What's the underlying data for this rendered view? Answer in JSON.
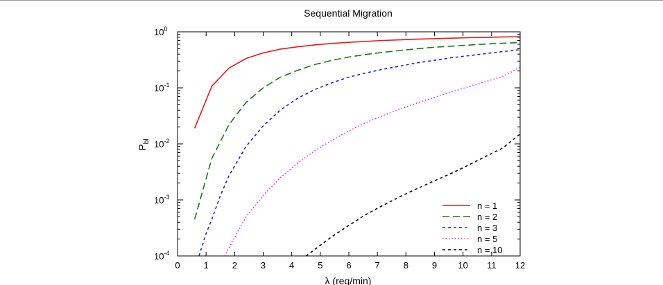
{
  "chart_data": {
    "type": "line",
    "title": "Sequential Migration",
    "xlabel": "λ (req/min)",
    "ylabel_base": "P",
    "ylabel_sub": "bl",
    "xlim": [
      0,
      12
    ],
    "ylim": [
      0.0001,
      1
    ],
    "yscale": "log",
    "grid": false,
    "legend_position": "bottom-right",
    "x_ticks": [
      0,
      1,
      2,
      3,
      4,
      5,
      6,
      7,
      8,
      9,
      10,
      11,
      12
    ],
    "y_ticks": [
      {
        "value": 0.0001,
        "base": "10",
        "exp": "-4"
      },
      {
        "value": 0.001,
        "base": "10",
        "exp": "-3"
      },
      {
        "value": 0.01,
        "base": "10",
        "exp": "-2"
      },
      {
        "value": 0.1,
        "base": "10",
        "exp": "-1"
      },
      {
        "value": 1,
        "base": "10",
        "exp": "0"
      }
    ],
    "series": [
      {
        "name": "n = 1",
        "color": "#e41a1c",
        "dash": "solid",
        "x": [
          0.6,
          1.2,
          1.8,
          2.4,
          3.0,
          3.6,
          4.2,
          4.8,
          5.4,
          6.0,
          6.6,
          7.2,
          7.8,
          8.4,
          9.0,
          9.6,
          10.2,
          10.8,
          11.4,
          12.0
        ],
        "y": [
          0.019,
          0.107,
          0.225,
          0.335,
          0.42,
          0.49,
          0.54,
          0.585,
          0.62,
          0.65,
          0.675,
          0.7,
          0.72,
          0.74,
          0.755,
          0.77,
          0.785,
          0.795,
          0.81,
          0.82
        ]
      },
      {
        "name": "n = 2",
        "color": "#1a7a1a",
        "dash": "long",
        "x": [
          0.6,
          1.2,
          1.8,
          2.4,
          3.0,
          3.6,
          4.2,
          4.8,
          5.4,
          6.0,
          6.6,
          7.2,
          7.8,
          8.4,
          9.0,
          9.6,
          10.2,
          10.8,
          11.4,
          12.0
        ],
        "y": [
          0.00045,
          0.0055,
          0.022,
          0.055,
          0.1,
          0.155,
          0.205,
          0.26,
          0.31,
          0.355,
          0.395,
          0.43,
          0.465,
          0.5,
          0.53,
          0.555,
          0.58,
          0.605,
          0.625,
          0.645
        ]
      },
      {
        "name": "n = 3",
        "color": "#1f1fdd",
        "dash": "short",
        "x": [
          0.75,
          1.0,
          1.2,
          1.5,
          1.8,
          2.4,
          3.0,
          3.6,
          4.2,
          4.8,
          5.4,
          6.0,
          6.6,
          7.2,
          7.8,
          8.4,
          9.0,
          9.6,
          10.2,
          10.8,
          11.4,
          12.0
        ],
        "y": [
          0.0001,
          0.00025,
          0.00045,
          0.0012,
          0.0027,
          0.009,
          0.021,
          0.04,
          0.065,
          0.093,
          0.123,
          0.155,
          0.185,
          0.215,
          0.245,
          0.28,
          0.31,
          0.345,
          0.375,
          0.41,
          0.445,
          0.48
        ]
      },
      {
        "name": "n = 5",
        "color": "#ee22ee",
        "dash": "dotted",
        "x": [
          1.65,
          1.8,
          2.4,
          3.0,
          3.6,
          4.2,
          4.8,
          5.4,
          6.0,
          6.6,
          7.2,
          7.8,
          8.4,
          9.0,
          9.6,
          10.2,
          10.8,
          11.4,
          12.0
        ],
        "y": [
          0.0001,
          0.00014,
          0.0005,
          0.0012,
          0.0025,
          0.0045,
          0.0075,
          0.0115,
          0.017,
          0.024,
          0.032,
          0.042,
          0.054,
          0.068,
          0.085,
          0.105,
          0.13,
          0.16,
          0.235
        ]
      },
      {
        "name": "n = 10",
        "color": "#000000",
        "dash": "short",
        "x": [
          4.5,
          4.8,
          5.4,
          6.0,
          6.6,
          7.2,
          7.8,
          8.4,
          9.0,
          9.6,
          10.2,
          10.8,
          11.4,
          12.0
        ],
        "y": [
          0.0001,
          0.00013,
          0.00022,
          0.00035,
          0.00055,
          0.0008,
          0.00115,
          0.0016,
          0.0022,
          0.003,
          0.0042,
          0.006,
          0.0085,
          0.015
        ]
      }
    ]
  }
}
